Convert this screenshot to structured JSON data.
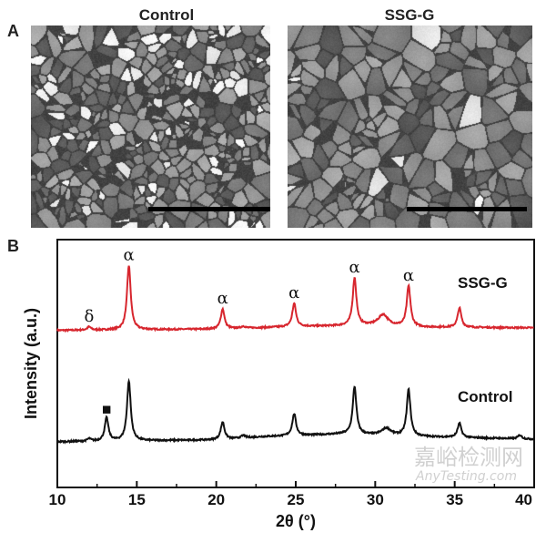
{
  "panel_a": {
    "label": "A",
    "images": [
      {
        "title": "Control",
        "description_kind": "SEM image",
        "has_scale_bar": true
      },
      {
        "title": "SSG-G",
        "description_kind": "SEM image",
        "has_scale_bar": true
      }
    ]
  },
  "panel_b": {
    "label": "B"
  },
  "watermark": {
    "cn": "嘉峪检测网",
    "en": "AnyTesting.com"
  },
  "chart_data": {
    "type": "line",
    "title": "",
    "xlabel": "2θ (°)",
    "ylabel": "Intensity (a.u.)",
    "xlim": [
      10,
      40
    ],
    "ylim": [
      0,
      385
    ],
    "xticks": [
      10,
      15,
      20,
      25,
      30,
      35,
      40
    ],
    "grid": false,
    "legend": "inline labels at right",
    "series": [
      {
        "name": "SSG-G",
        "color": "#d7262e",
        "offset": 244,
        "baseline": [
          [
            10,
            0
          ],
          [
            20,
            2
          ],
          [
            25,
            6
          ],
          [
            30,
            8
          ],
          [
            33,
            5
          ],
          [
            40,
            4
          ]
        ],
        "peaks": [
          {
            "x": 12.0,
            "h": 5,
            "label": "δ"
          },
          {
            "x": 14.5,
            "h": 100,
            "label": "α"
          },
          {
            "x": 20.4,
            "h": 31,
            "label": "α"
          },
          {
            "x": 21.7,
            "h": 3,
            "label": ""
          },
          {
            "x": 24.9,
            "h": 36,
            "label": "α"
          },
          {
            "x": 28.7,
            "h": 74,
            "label": "α"
          },
          {
            "x": 30.5,
            "h": 17,
            "label": ""
          },
          {
            "x": 32.1,
            "h": 63,
            "label": "α"
          },
          {
            "x": 35.3,
            "h": 30,
            "label": ""
          }
        ]
      },
      {
        "name": "Control",
        "color": "#111111",
        "offset": 71,
        "baseline": [
          [
            10,
            0
          ],
          [
            20,
            3
          ],
          [
            23,
            8
          ],
          [
            28,
            12
          ],
          [
            33,
            8
          ],
          [
            40,
            4
          ]
        ],
        "peaks": [
          {
            "x": 12.0,
            "h": 4,
            "label": ""
          },
          {
            "x": 13.1,
            "h": 36,
            "label": "■"
          },
          {
            "x": 14.5,
            "h": 93,
            "label": ""
          },
          {
            "x": 20.4,
            "h": 27,
            "label": ""
          },
          {
            "x": 21.7,
            "h": 4,
            "label": ""
          },
          {
            "x": 24.9,
            "h": 34,
            "label": ""
          },
          {
            "x": 28.7,
            "h": 74,
            "label": ""
          },
          {
            "x": 30.7,
            "h": 11,
            "label": ""
          },
          {
            "x": 32.1,
            "h": 72,
            "label": ""
          },
          {
            "x": 35.3,
            "h": 22,
            "label": ""
          },
          {
            "x": 39.1,
            "h": 6,
            "label": ""
          }
        ]
      }
    ]
  }
}
